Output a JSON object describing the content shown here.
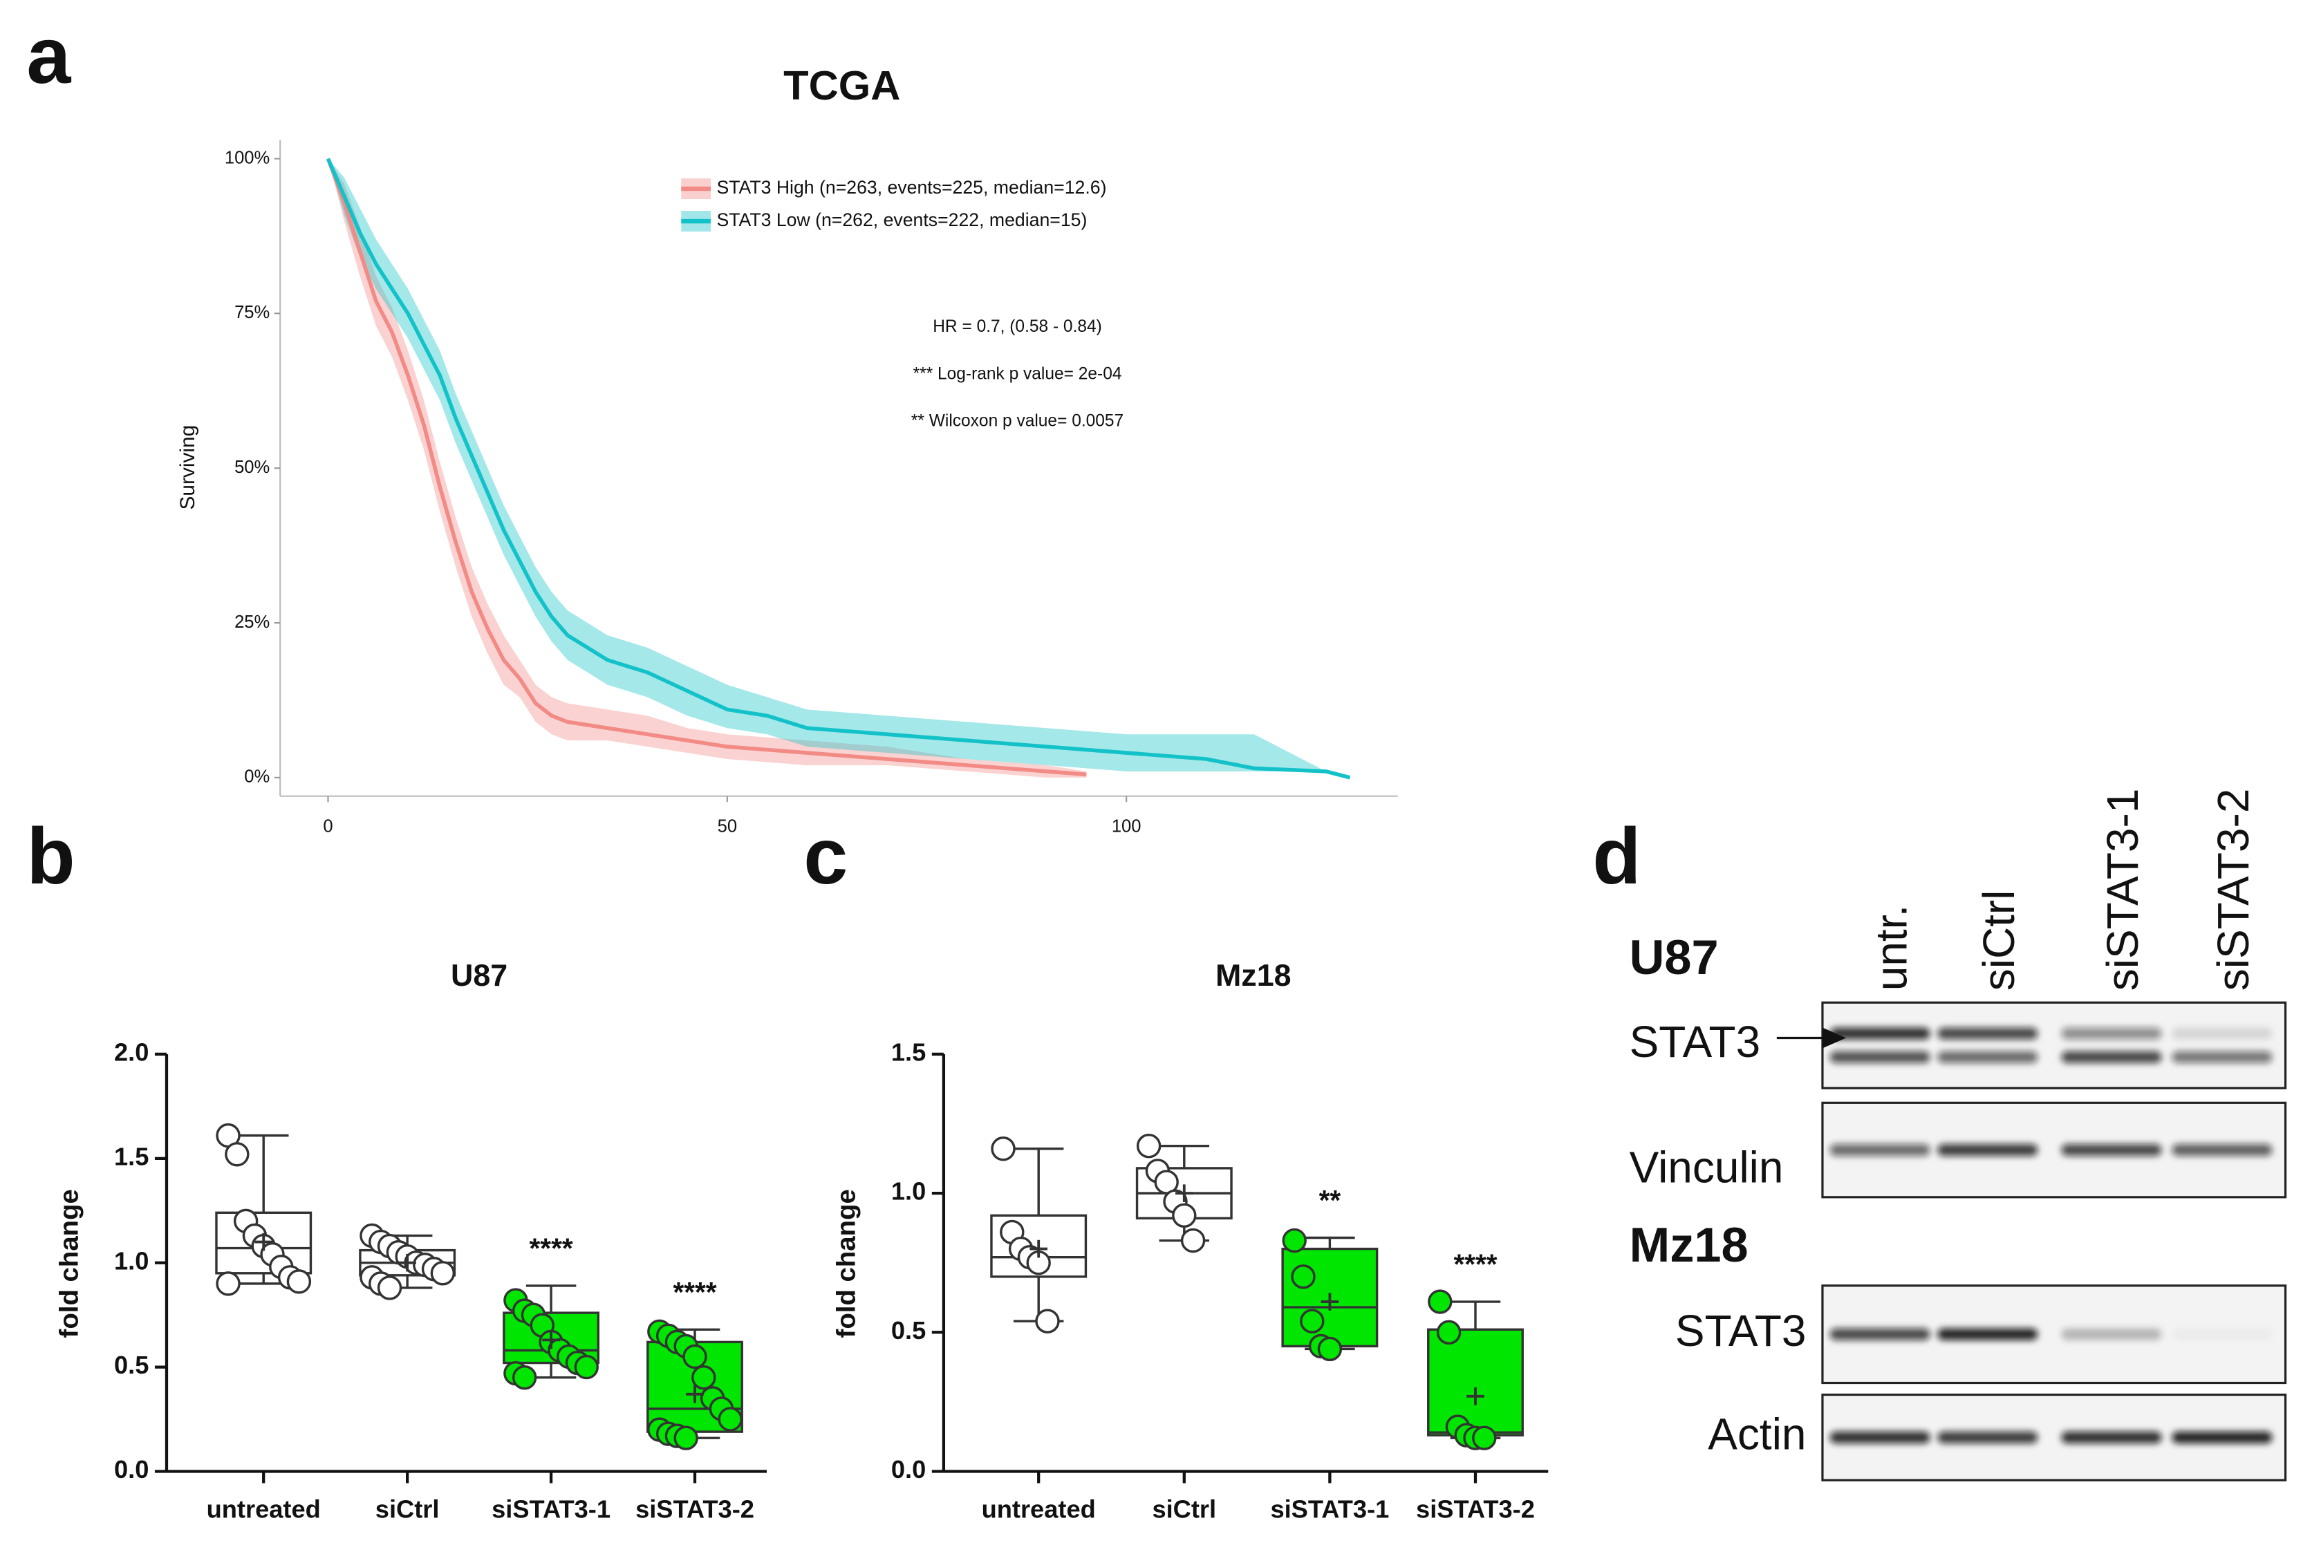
{
  "chart_data": [
    {
      "type": "line",
      "panel": "a",
      "title": "TCGA",
      "y_label": "Surviving",
      "xlim": [
        -6,
        134
      ],
      "xticks": [
        0,
        50,
        100
      ],
      "ylim": [
        -3,
        103
      ],
      "yticks": [
        {
          "value": 0,
          "label": "0%"
        },
        {
          "value": 25,
          "label": "25%"
        },
        {
          "value": 50,
          "label": "50%"
        },
        {
          "value": 75,
          "label": "75%"
        },
        {
          "value": 100,
          "label": "100%"
        }
      ],
      "annotations": [
        "HR = 0.7, (0.58 - 0.84)",
        "*** Log-rank p value= 2e-04",
        "** Wilcoxon p value= 0.0057"
      ],
      "series": [
        {
          "name": "STAT3 High (n=263, events=225, median=12.6)",
          "color": "#f28a85",
          "x": [
            0,
            2,
            4,
            6,
            8,
            10,
            12,
            14,
            16,
            18,
            20,
            22,
            24,
            26,
            28,
            30,
            35,
            40,
            45,
            50,
            60,
            70,
            80,
            90,
            95
          ],
          "values": [
            100,
            93,
            85,
            77,
            72,
            65,
            57,
            47,
            38,
            30,
            24,
            19,
            16,
            12,
            10,
            9,
            8,
            7,
            6,
            5,
            4,
            3,
            2,
            1,
            0.5
          ],
          "lower": [
            100,
            90,
            81,
            73,
            68,
            61,
            53,
            43,
            34,
            26,
            20,
            15,
            13,
            9,
            7,
            6,
            6,
            5,
            4,
            3,
            2,
            2,
            1,
            0,
            0
          ],
          "upper": [
            100,
            96,
            89,
            81,
            76,
            69,
            61,
            51,
            42,
            34,
            28,
            23,
            19,
            15,
            13,
            12,
            11,
            10,
            8,
            7,
            6,
            5,
            3,
            2,
            1
          ]
        },
        {
          "name": "STAT3 Low (n=262, events=222, median=15)",
          "color": "#13c2c8",
          "x": [
            0,
            2,
            4,
            6,
            8,
            10,
            12,
            14,
            16,
            18,
            20,
            22,
            24,
            26,
            28,
            30,
            35,
            40,
            45,
            50,
            55,
            60,
            70,
            80,
            90,
            100,
            110,
            116,
            125,
            128
          ],
          "values": [
            100,
            94,
            88,
            83,
            79,
            75,
            70,
            65,
            58,
            52,
            46,
            40,
            35,
            30,
            26,
            23,
            19,
            17,
            14,
            11,
            10,
            8,
            7,
            6,
            5,
            4,
            3,
            1.5,
            1,
            0
          ],
          "lower": [
            100,
            91,
            84,
            79,
            75,
            71,
            66,
            61,
            54,
            48,
            42,
            36,
            31,
            26,
            22,
            19,
            15,
            13,
            10,
            8,
            7,
            5,
            4,
            3,
            2,
            1,
            1,
            1,
            1,
            0
          ],
          "upper": [
            100,
            97,
            92,
            87,
            83,
            79,
            74,
            69,
            62,
            56,
            50,
            44,
            39,
            34,
            30,
            27,
            23,
            21,
            18,
            15,
            13,
            11,
            10,
            9,
            8,
            7,
            7,
            7,
            1,
            0
          ]
        }
      ]
    },
    {
      "type": "box",
      "panel": "b",
      "title": "U87",
      "y_label": "fold change",
      "categories": [
        "untreated",
        "siCtrl",
        "siSTAT3-1",
        "siSTAT3-2"
      ],
      "colors": [
        "#ffffff",
        "#ffffff",
        "#00e600",
        "#00e600"
      ],
      "ylim": [
        0,
        2
      ],
      "yticks": [
        {
          "value": 0,
          "label": "0.0"
        },
        {
          "value": 0.5,
          "label": "0.5"
        },
        {
          "value": 1,
          "label": "1.0"
        },
        {
          "value": 1.5,
          "label": "1.5"
        },
        {
          "value": 2,
          "label": "2.0"
        }
      ],
      "significance": [
        null,
        null,
        "****",
        "****"
      ],
      "boxes": [
        {
          "min": 0.9,
          "q1": 0.95,
          "median": 1.07,
          "q3": 1.24,
          "max": 1.61,
          "mean": 1.1,
          "points": [
            1.61,
            1.52,
            1.2,
            1.13,
            1.08,
            1.04,
            0.98,
            0.93,
            0.91,
            0.9
          ]
        },
        {
          "min": 0.88,
          "q1": 0.94,
          "median": 1.0,
          "q3": 1.06,
          "max": 1.13,
          "mean": 1.0,
          "points": [
            1.13,
            1.1,
            1.08,
            1.05,
            1.03,
            1.0,
            0.99,
            0.97,
            0.95,
            0.93,
            0.9,
            0.88
          ]
        },
        {
          "min": 0.45,
          "q1": 0.52,
          "median": 0.58,
          "q3": 0.76,
          "max": 0.89,
          "mean": 0.63,
          "points": [
            0.82,
            0.77,
            0.75,
            0.7,
            0.62,
            0.58,
            0.55,
            0.52,
            0.5,
            0.47,
            0.45
          ]
        },
        {
          "min": 0.16,
          "q1": 0.19,
          "median": 0.3,
          "q3": 0.62,
          "max": 0.68,
          "mean": 0.37,
          "points": [
            0.67,
            0.65,
            0.62,
            0.6,
            0.55,
            0.45,
            0.35,
            0.3,
            0.25,
            0.2,
            0.18,
            0.17,
            0.16
          ]
        }
      ]
    },
    {
      "type": "box",
      "panel": "c",
      "title": "Mz18",
      "y_label": "fold change",
      "categories": [
        "untreated",
        "siCtrl",
        "siSTAT3-1",
        "siSTAT3-2"
      ],
      "colors": [
        "#ffffff",
        "#ffffff",
        "#00e600",
        "#00e600"
      ],
      "ylim": [
        0,
        1.5
      ],
      "yticks": [
        {
          "value": 0,
          "label": "0.0"
        },
        {
          "value": 0.5,
          "label": "0.5"
        },
        {
          "value": 1,
          "label": "1.0"
        },
        {
          "value": 1.5,
          "label": "1.5"
        }
      ],
      "significance": [
        null,
        null,
        "**",
        "****"
      ],
      "boxes": [
        {
          "min": 0.54,
          "q1": 0.7,
          "median": 0.77,
          "q3": 0.92,
          "max": 1.16,
          "mean": 0.8,
          "points": [
            1.16,
            0.86,
            0.8,
            0.77,
            0.75,
            0.54
          ]
        },
        {
          "min": 0.83,
          "q1": 0.91,
          "median": 1.0,
          "q3": 1.09,
          "max": 1.17,
          "mean": 1.0,
          "points": [
            1.17,
            1.08,
            1.04,
            0.97,
            0.92,
            0.83
          ]
        },
        {
          "min": 0.44,
          "q1": 0.45,
          "median": 0.59,
          "q3": 0.8,
          "max": 0.84,
          "mean": 0.61,
          "points": [
            0.83,
            0.7,
            0.54,
            0.45,
            0.44
          ]
        },
        {
          "min": 0.12,
          "q1": 0.13,
          "median": 0.14,
          "q3": 0.51,
          "max": 0.61,
          "mean": 0.27,
          "points": [
            0.61,
            0.5,
            0.16,
            0.13,
            0.12,
            0.12
          ]
        }
      ]
    }
  ],
  "blot": {
    "panel": "d",
    "lanes": [
      "untr.",
      "siCtrl",
      "siSTAT3-1",
      "siSTAT3-2"
    ],
    "cells": [
      {
        "name": "U87",
        "rows": [
          "STAT3",
          "Vinculin"
        ]
      },
      {
        "name": "Mz18",
        "rows": [
          "STAT3",
          "Actin"
        ]
      }
    ]
  }
}
